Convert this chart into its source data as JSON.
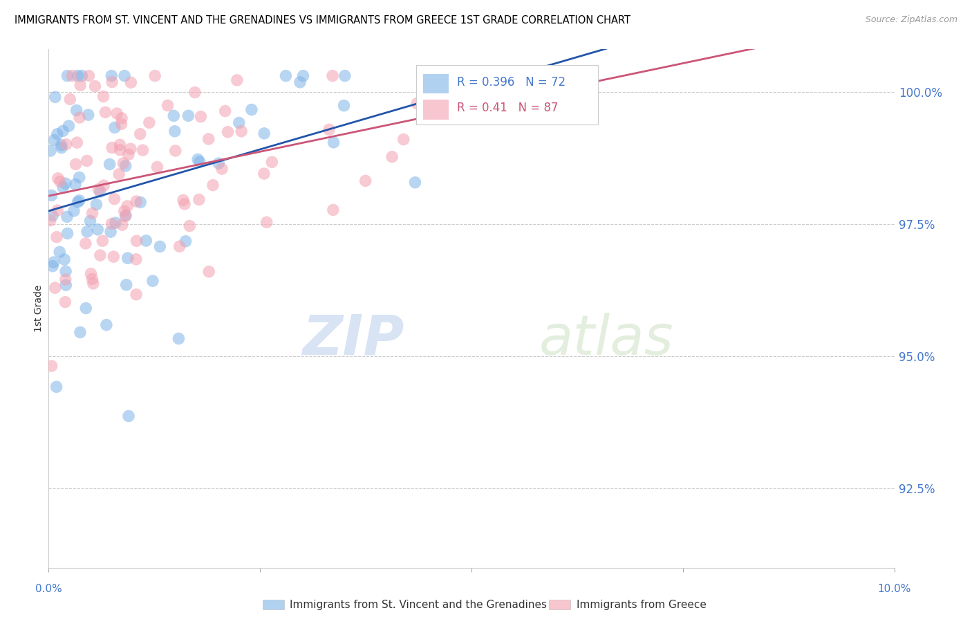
{
  "title": "IMMIGRANTS FROM ST. VINCENT AND THE GRENADINES VS IMMIGRANTS FROM GREECE 1ST GRADE CORRELATION CHART",
  "source": "Source: ZipAtlas.com",
  "ylabel": "1st Grade",
  "yticks": [
    92.5,
    95.0,
    97.5,
    100.0
  ],
  "ytick_labels": [
    "92.5%",
    "95.0%",
    "97.5%",
    "100.0%"
  ],
  "blue_R": 0.396,
  "blue_N": 72,
  "pink_R": 0.41,
  "pink_N": 87,
  "blue_color": "#7EB3E8",
  "pink_color": "#F4A0B0",
  "line_blue": "#2255AA",
  "line_pink": "#CC5577",
  "legend_blue": "Immigrants from St. Vincent and the Grenadines",
  "legend_pink": "Immigrants from Greece",
  "watermark_zip": "ZIP",
  "watermark_atlas": "atlas",
  "xlim": [
    0.0,
    0.1
  ],
  "ylim": [
    91.0,
    100.8
  ],
  "title_fontsize": 11,
  "axis_color": "#4477CC",
  "tick_color": "#4477CC"
}
